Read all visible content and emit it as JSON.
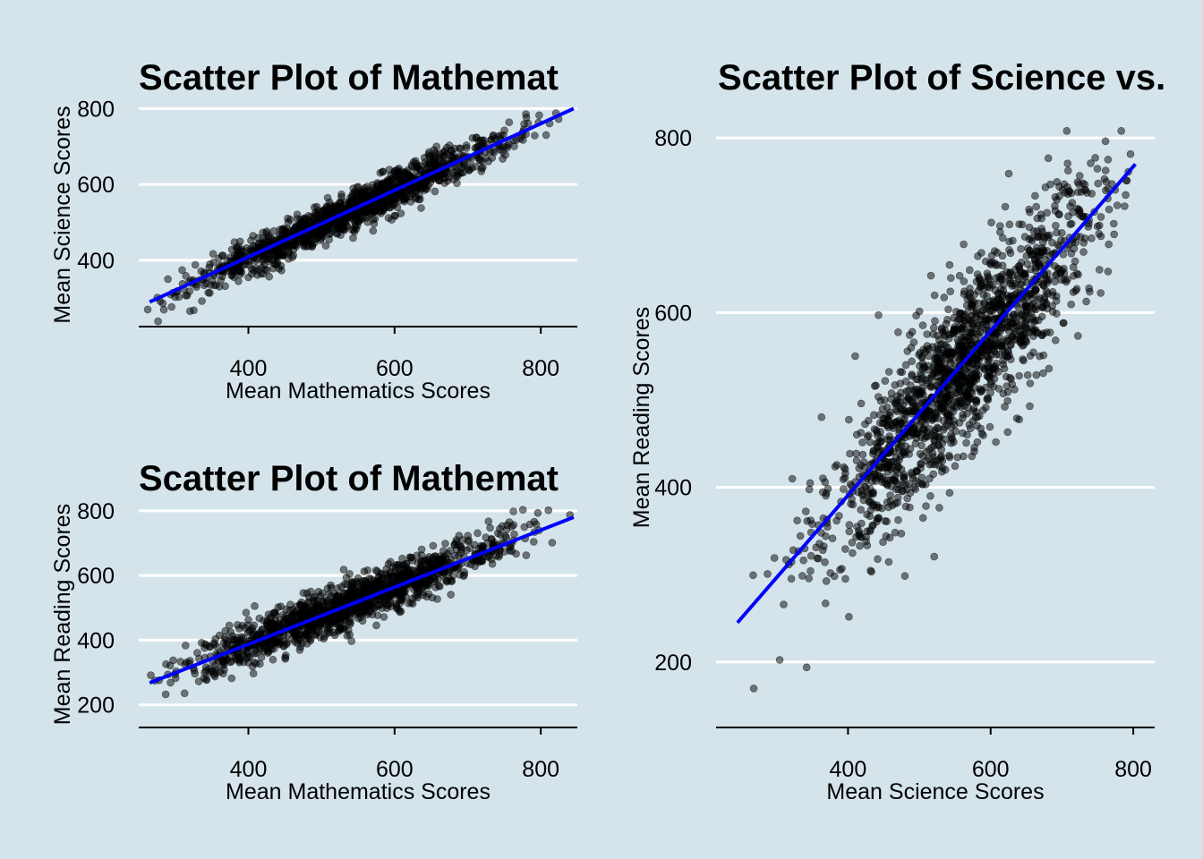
{
  "colors": {
    "background": "#d5e4eb",
    "grid": "#ffffff",
    "points": "#000000",
    "fit_line": "#0000ff"
  },
  "chart_data": [
    {
      "id": "math-vs-science",
      "type": "scatter",
      "title": "Scatter Plot of Mathemat",
      "xlabel": "Mean Mathematics Scores",
      "ylabel": "Mean Science Scores",
      "xlim": [
        250,
        850
      ],
      "ylim": [
        225,
        815
      ],
      "xticks": [
        "400",
        "600",
        "800"
      ],
      "yticks": [
        "400",
        "600",
        "800"
      ],
      "grid": "horizontal",
      "n_points": 1400,
      "x_center": 540,
      "x_sd": 110,
      "x_range": [
        262,
        840
      ],
      "slope": 0.89,
      "intercept": 50,
      "noise_sd": 25,
      "fit_line": {
        "x": [
          265,
          845
        ],
        "y": [
          290,
          800
        ]
      }
    },
    {
      "id": "math-vs-reading",
      "type": "scatter",
      "title": "Scatter Plot of Mathemat",
      "xlabel": "Mean Mathematics Scores",
      "ylabel": "Mean Reading Scores",
      "xlim": [
        250,
        850
      ],
      "ylim": [
        130,
        830
      ],
      "xticks": [
        "400",
        "600",
        "800"
      ],
      "yticks": [
        "200",
        "400",
        "600",
        "800"
      ],
      "grid": "horizontal",
      "n_points": 1400,
      "x_center": 540,
      "x_sd": 110,
      "x_range": [
        262,
        840
      ],
      "slope": 0.895,
      "intercept": 30,
      "noise_sd": 35,
      "fit_line": {
        "x": [
          265,
          845
        ],
        "y": [
          268,
          780
        ]
      }
    },
    {
      "id": "science-vs-reading",
      "type": "scatter",
      "title": "Scatter Plot of Science vs.",
      "xlabel": "Mean Science Scores",
      "ylabel": "Mean Reading Scores",
      "xlim": [
        215,
        830
      ],
      "ylim": [
        125,
        835
      ],
      "xticks": [
        "400",
        "600",
        "800"
      ],
      "yticks": [
        "200",
        "400",
        "600",
        "800"
      ],
      "grid": "horizontal",
      "n_points": 1700,
      "x_center": 560,
      "x_sd": 100,
      "x_range": [
        240,
        800
      ],
      "slope": 0.94,
      "intercept": 10,
      "noise_sd": 48,
      "fit_line": {
        "x": [
          245,
          803
        ],
        "y": [
          245,
          770
        ]
      }
    }
  ]
}
